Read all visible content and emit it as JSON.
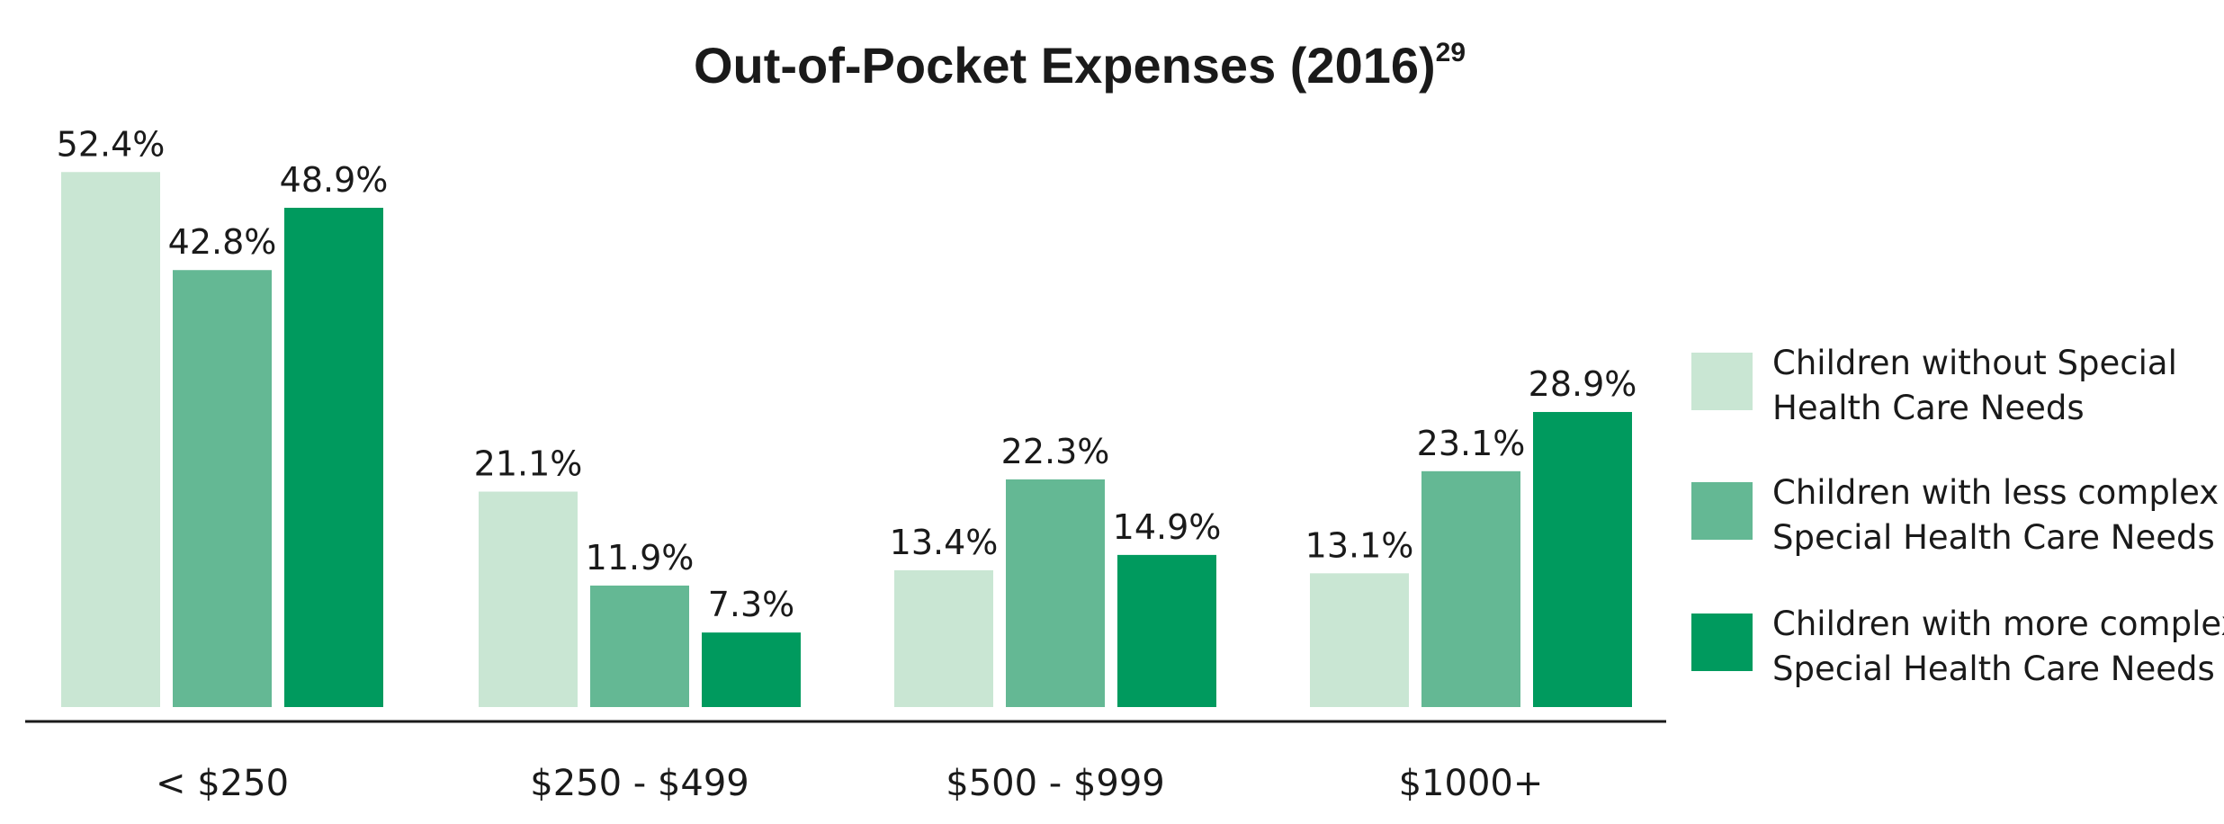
{
  "chart_data": {
    "type": "bar",
    "title": "Out-of-Pocket Expenses (2016)",
    "title_superscript": "29",
    "categories": [
      "< $250",
      "$250 - $499",
      "$500 - $999",
      "$1000+"
    ],
    "series": [
      {
        "name": "Children without Special Health Care Needs",
        "legend_lines": [
          "Children without Special",
          "Health Care Needs"
        ],
        "color": "#c9e6d3",
        "values": [
          52.4,
          21.1,
          13.4,
          13.1
        ],
        "labels": [
          "52.4%",
          "21.1%",
          "13.4%",
          "13.1%"
        ]
      },
      {
        "name": "Children with less complex Special Health Care Needs",
        "legend_lines": [
          "Children with less complex",
          "Special Health Care Needs"
        ],
        "color": "#64b894",
        "values": [
          42.8,
          11.9,
          22.3,
          23.1
        ],
        "labels": [
          "42.8%",
          "11.9%",
          "22.3%",
          "23.1%"
        ]
      },
      {
        "name": "Children with more complex Special Health Care Needs",
        "legend_lines": [
          "Children with more complex",
          "Special Health Care Needs"
        ],
        "color": "#009a5e",
        "values": [
          48.9,
          7.3,
          14.9,
          28.9
        ],
        "labels": [
          "48.9%",
          "7.3%",
          "14.9%",
          "28.9%"
        ]
      }
    ],
    "ylim": [
      0,
      60
    ],
    "grid": false,
    "legend_position": "right",
    "xlabel": "",
    "ylabel": ""
  }
}
